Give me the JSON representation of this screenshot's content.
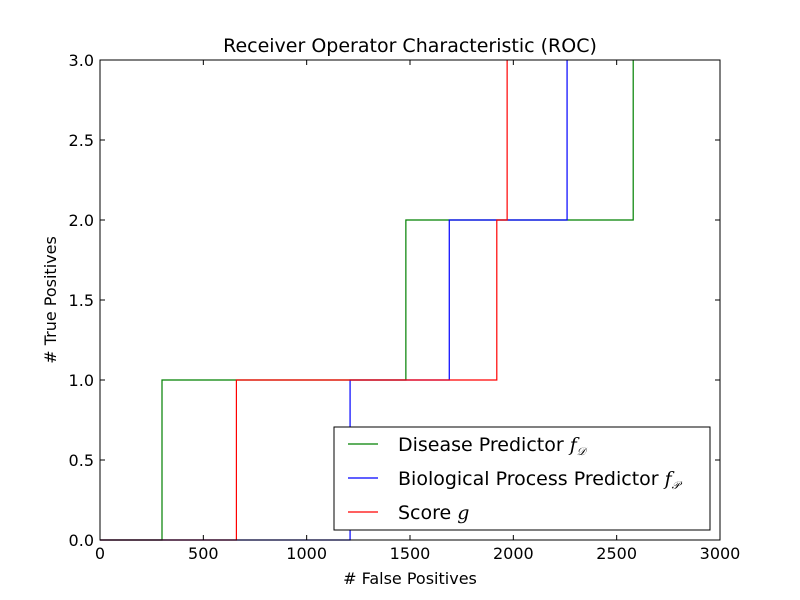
{
  "chart_data": {
    "type": "line",
    "step": true,
    "title": "Receiver Operator Characteristic (ROC)",
    "xlabel": "# False Positives",
    "ylabel": "# True Positives",
    "xlim": [
      0,
      3000
    ],
    "ylim": [
      0,
      3.0
    ],
    "x_ticks": [
      0,
      500,
      1000,
      1500,
      2000,
      2500,
      3000
    ],
    "x_tick_labels": [
      "0",
      "500",
      "1000",
      "1500",
      "2000",
      "2500",
      "3000"
    ],
    "y_ticks": [
      0.0,
      0.5,
      1.0,
      1.5,
      2.0,
      2.5,
      3.0
    ],
    "y_tick_labels": [
      "0.0",
      "0.5",
      "1.0",
      "1.5",
      "2.0",
      "2.5",
      "3.0"
    ],
    "grid": false,
    "legend_position": "lower-right",
    "series": [
      {
        "name": "Disease Predictor",
        "name_math": "f",
        "name_math_sub": "𝒟",
        "color": "#008000",
        "x": [
          0,
          300,
          300,
          1480,
          1480,
          2580,
          2580
        ],
        "y": [
          0,
          0,
          1,
          1,
          2,
          2,
          3
        ]
      },
      {
        "name": "Biological Process Predictor",
        "name_math": "f",
        "name_math_sub": "𝒫",
        "color": "#0000ff",
        "x": [
          0,
          1210,
          1210,
          1690,
          1690,
          2260,
          2260
        ],
        "y": [
          0,
          0,
          1,
          1,
          2,
          2,
          3
        ]
      },
      {
        "name": "Score",
        "name_math": "g",
        "name_math_sub": "",
        "color": "#ff0000",
        "x": [
          0,
          660,
          660,
          1920,
          1920,
          1970,
          1970
        ],
        "y": [
          0,
          0,
          1,
          1,
          2,
          2,
          3
        ]
      }
    ]
  }
}
